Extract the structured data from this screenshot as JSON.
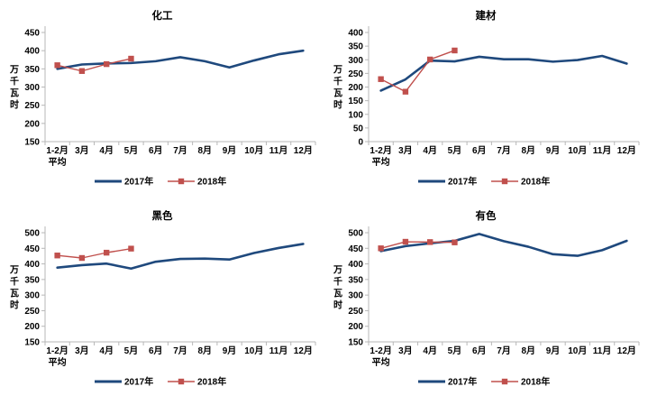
{
  "colors": {
    "series_2017": "#1F497D",
    "series_2018": "#C0504D",
    "axis_line": "#B7B7B7",
    "label_text": "#000000",
    "background": "#FFFFFF"
  },
  "legend_labels": [
    "2017年",
    "2018年"
  ],
  "y_axis_unit_label": "万千瓦时",
  "chart_data": [
    {
      "type": "line",
      "title": "化工",
      "ylabel": "万千瓦时",
      "xlabel": "",
      "grid": false,
      "legend_position": "bottom",
      "ylim": [
        150,
        450
      ],
      "yticks": [
        450,
        400,
        350,
        300,
        250,
        200,
        150
      ],
      "categories": [
        "1-2月\n平均",
        "3月",
        "4月",
        "5月",
        "6月",
        "7月",
        "8月",
        "9月",
        "10月",
        "11月",
        "12月"
      ],
      "series": [
        {
          "name": "2017年",
          "color": "#1F497D",
          "marker": "none",
          "values": [
            350,
            362,
            365,
            366,
            371,
            382,
            371,
            354,
            373,
            390,
            400
          ]
        },
        {
          "name": "2018年",
          "color": "#C0504D",
          "marker": "square",
          "values": [
            360,
            344,
            363,
            378
          ]
        }
      ]
    },
    {
      "type": "line",
      "title": "建材",
      "ylabel": "万千瓦时",
      "xlabel": "",
      "grid": false,
      "legend_position": "bottom",
      "ylim": [
        0,
        400
      ],
      "yticks": [
        400,
        350,
        300,
        250,
        200,
        150,
        100,
        50,
        0
      ],
      "categories": [
        "1-2月\n平均",
        "3月",
        "4月",
        "5月",
        "6月",
        "7月",
        "8月",
        "9月",
        "10月",
        "11月",
        "12月"
      ],
      "series": [
        {
          "name": "2017年",
          "color": "#1F497D",
          "marker": "none",
          "values": [
            187,
            228,
            297,
            294,
            311,
            302,
            302,
            293,
            299,
            314,
            286
          ]
        },
        {
          "name": "2018年",
          "color": "#C0504D",
          "marker": "square",
          "values": [
            229,
            183,
            301,
            334
          ]
        }
      ]
    },
    {
      "type": "line",
      "title": "黑色",
      "ylabel": "万千瓦时",
      "xlabel": "",
      "grid": false,
      "legend_position": "bottom",
      "ylim": [
        150,
        500
      ],
      "yticks": [
        500,
        450,
        400,
        350,
        300,
        250,
        200,
        150
      ],
      "categories": [
        "1-2月\n平均",
        "3月",
        "4月",
        "5月",
        "6月",
        "7月",
        "8月",
        "9月",
        "10月",
        "11月",
        "12月"
      ],
      "series": [
        {
          "name": "2017年",
          "color": "#1F497D",
          "marker": "none",
          "values": [
            388,
            396,
            401,
            385,
            407,
            416,
            417,
            414,
            435,
            451,
            464
          ]
        },
        {
          "name": "2018年",
          "color": "#C0504D",
          "marker": "square",
          "values": [
            427,
            419,
            436,
            449
          ]
        }
      ]
    },
    {
      "type": "line",
      "title": "有色",
      "ylabel": "万千瓦时",
      "xlabel": "",
      "grid": false,
      "legend_position": "bottom",
      "ylim": [
        150,
        500
      ],
      "yticks": [
        500,
        450,
        400,
        350,
        300,
        250,
        200,
        150
      ],
      "categories": [
        "1-2月\n平均",
        "3月",
        "4月",
        "5月",
        "6月",
        "7月",
        "8月",
        "9月",
        "10月",
        "11月",
        "12月"
      ],
      "series": [
        {
          "name": "2017年",
          "color": "#1F497D",
          "marker": "none",
          "values": [
            441,
            457,
            466,
            474,
            496,
            473,
            455,
            431,
            426,
            444,
            474
          ]
        },
        {
          "name": "2018年",
          "color": "#C0504D",
          "marker": "square",
          "values": [
            450,
            471,
            470,
            469
          ]
        }
      ]
    }
  ]
}
